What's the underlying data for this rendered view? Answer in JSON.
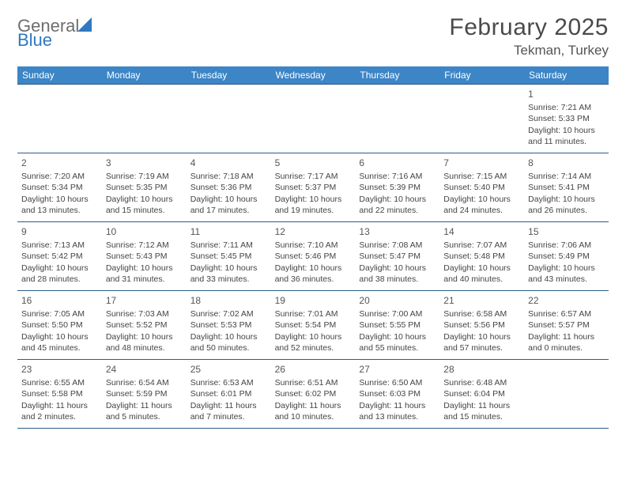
{
  "logo": {
    "general": "General",
    "blue": "Blue"
  },
  "title": {
    "month": "February 2025",
    "location": "Tekman, Turkey"
  },
  "colors": {
    "header_bg": "#3c85c6",
    "header_text": "#ffffff",
    "rule": "#2b5d8c",
    "logo_gray": "#6e6e6e",
    "logo_blue": "#2f78c2"
  },
  "weekdays": [
    "Sunday",
    "Monday",
    "Tuesday",
    "Wednesday",
    "Thursday",
    "Friday",
    "Saturday"
  ],
  "labels": {
    "sunrise": "Sunrise:",
    "sunset": "Sunset:",
    "daylight": "Daylight:"
  },
  "weeks": [
    [
      null,
      null,
      null,
      null,
      null,
      null,
      {
        "n": "1",
        "sr": "7:21 AM",
        "ss": "5:33 PM",
        "dl": "10 hours and 11 minutes."
      }
    ],
    [
      {
        "n": "2",
        "sr": "7:20 AM",
        "ss": "5:34 PM",
        "dl": "10 hours and 13 minutes."
      },
      {
        "n": "3",
        "sr": "7:19 AM",
        "ss": "5:35 PM",
        "dl": "10 hours and 15 minutes."
      },
      {
        "n": "4",
        "sr": "7:18 AM",
        "ss": "5:36 PM",
        "dl": "10 hours and 17 minutes."
      },
      {
        "n": "5",
        "sr": "7:17 AM",
        "ss": "5:37 PM",
        "dl": "10 hours and 19 minutes."
      },
      {
        "n": "6",
        "sr": "7:16 AM",
        "ss": "5:39 PM",
        "dl": "10 hours and 22 minutes."
      },
      {
        "n": "7",
        "sr": "7:15 AM",
        "ss": "5:40 PM",
        "dl": "10 hours and 24 minutes."
      },
      {
        "n": "8",
        "sr": "7:14 AM",
        "ss": "5:41 PM",
        "dl": "10 hours and 26 minutes."
      }
    ],
    [
      {
        "n": "9",
        "sr": "7:13 AM",
        "ss": "5:42 PM",
        "dl": "10 hours and 28 minutes."
      },
      {
        "n": "10",
        "sr": "7:12 AM",
        "ss": "5:43 PM",
        "dl": "10 hours and 31 minutes."
      },
      {
        "n": "11",
        "sr": "7:11 AM",
        "ss": "5:45 PM",
        "dl": "10 hours and 33 minutes."
      },
      {
        "n": "12",
        "sr": "7:10 AM",
        "ss": "5:46 PM",
        "dl": "10 hours and 36 minutes."
      },
      {
        "n": "13",
        "sr": "7:08 AM",
        "ss": "5:47 PM",
        "dl": "10 hours and 38 minutes."
      },
      {
        "n": "14",
        "sr": "7:07 AM",
        "ss": "5:48 PM",
        "dl": "10 hours and 40 minutes."
      },
      {
        "n": "15",
        "sr": "7:06 AM",
        "ss": "5:49 PM",
        "dl": "10 hours and 43 minutes."
      }
    ],
    [
      {
        "n": "16",
        "sr": "7:05 AM",
        "ss": "5:50 PM",
        "dl": "10 hours and 45 minutes."
      },
      {
        "n": "17",
        "sr": "7:03 AM",
        "ss": "5:52 PM",
        "dl": "10 hours and 48 minutes."
      },
      {
        "n": "18",
        "sr": "7:02 AM",
        "ss": "5:53 PM",
        "dl": "10 hours and 50 minutes."
      },
      {
        "n": "19",
        "sr": "7:01 AM",
        "ss": "5:54 PM",
        "dl": "10 hours and 52 minutes."
      },
      {
        "n": "20",
        "sr": "7:00 AM",
        "ss": "5:55 PM",
        "dl": "10 hours and 55 minutes."
      },
      {
        "n": "21",
        "sr": "6:58 AM",
        "ss": "5:56 PM",
        "dl": "10 hours and 57 minutes."
      },
      {
        "n": "22",
        "sr": "6:57 AM",
        "ss": "5:57 PM",
        "dl": "11 hours and 0 minutes."
      }
    ],
    [
      {
        "n": "23",
        "sr": "6:55 AM",
        "ss": "5:58 PM",
        "dl": "11 hours and 2 minutes."
      },
      {
        "n": "24",
        "sr": "6:54 AM",
        "ss": "5:59 PM",
        "dl": "11 hours and 5 minutes."
      },
      {
        "n": "25",
        "sr": "6:53 AM",
        "ss": "6:01 PM",
        "dl": "11 hours and 7 minutes."
      },
      {
        "n": "26",
        "sr": "6:51 AM",
        "ss": "6:02 PM",
        "dl": "11 hours and 10 minutes."
      },
      {
        "n": "27",
        "sr": "6:50 AM",
        "ss": "6:03 PM",
        "dl": "11 hours and 13 minutes."
      },
      {
        "n": "28",
        "sr": "6:48 AM",
        "ss": "6:04 PM",
        "dl": "11 hours and 15 minutes."
      },
      null
    ]
  ]
}
